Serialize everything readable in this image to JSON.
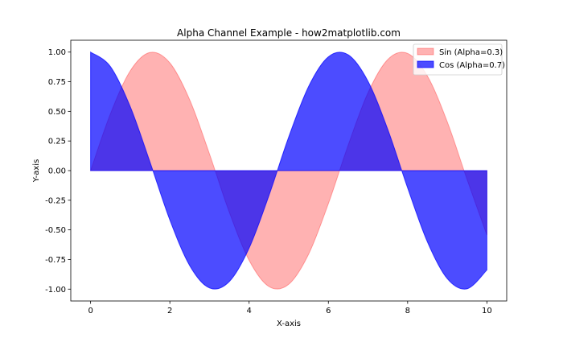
{
  "chart_data": {
    "type": "area",
    "title": "Alpha Channel Example - how2matplotlib.com",
    "xlabel": "X-axis",
    "ylabel": "Y-axis",
    "xlim": [
      -0.5,
      10.5
    ],
    "ylim": [
      -1.1,
      1.1
    ],
    "x_ticks": [
      0,
      2,
      4,
      6,
      8,
      10
    ],
    "x_tick_labels": [
      "0",
      "2",
      "4",
      "6",
      "8",
      "10"
    ],
    "y_ticks": [
      -1.0,
      -0.75,
      -0.5,
      -0.25,
      0.0,
      0.25,
      0.5,
      0.75,
      1.0
    ],
    "y_tick_labels": [
      "-1.00",
      "-0.75",
      "-0.50",
      "-0.25",
      "0.00",
      "0.25",
      "0.50",
      "0.75",
      "1.00"
    ],
    "grid": false,
    "legend_position": "top-right",
    "fill_baseline": 0,
    "x": [
      0.0,
      0.5,
      1.0,
      1.5,
      2.0,
      2.5,
      3.0,
      3.5,
      4.0,
      4.5,
      5.0,
      5.5,
      6.0,
      6.5,
      7.0,
      7.5,
      8.0,
      8.5,
      9.0,
      9.5,
      10.0
    ],
    "series": [
      {
        "name": "Sin (Alpha=0.3)",
        "color": "#ff0000",
        "alpha": 0.3,
        "values": [
          0.0,
          0.479,
          0.841,
          0.997,
          0.909,
          0.598,
          0.141,
          -0.351,
          -0.757,
          -0.978,
          -0.959,
          -0.706,
          -0.279,
          0.215,
          0.657,
          0.938,
          0.989,
          0.798,
          0.412,
          -0.075,
          -0.544
        ]
      },
      {
        "name": "Cos (Alpha=0.7)",
        "color": "#0000ff",
        "alpha": 0.7,
        "values": [
          1.0,
          0.878,
          0.54,
          0.071,
          -0.416,
          -0.801,
          -0.99,
          -0.936,
          -0.654,
          -0.211,
          0.284,
          0.709,
          0.96,
          0.977,
          0.754,
          0.347,
          -0.146,
          -0.602,
          -0.911,
          -0.997,
          -0.839
        ]
      }
    ]
  }
}
